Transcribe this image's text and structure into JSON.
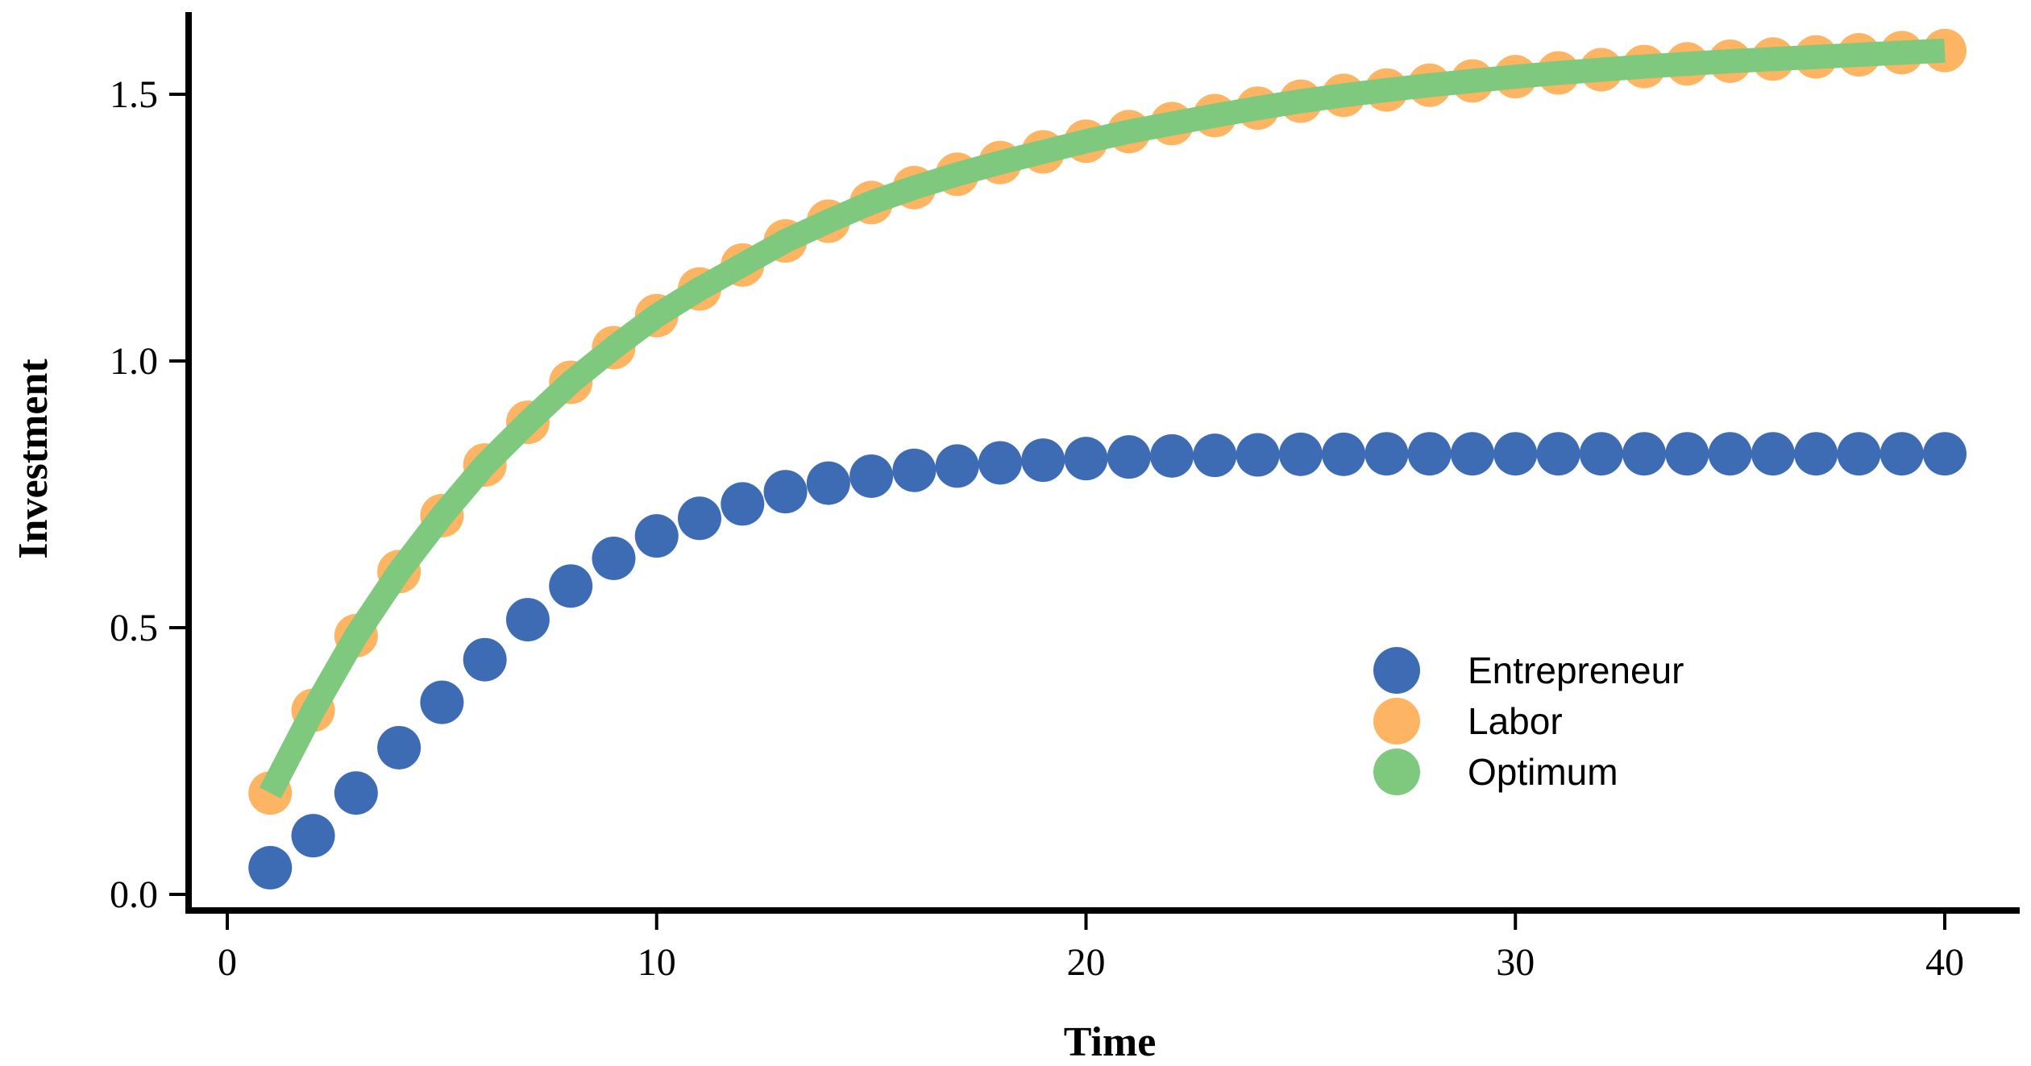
{
  "chart_data": {
    "type": "scatter",
    "title": "",
    "xlabel": "Time",
    "ylabel": "Investment",
    "xlim": [
      -1,
      42
    ],
    "ylim": [
      -0.05,
      1.65
    ],
    "xticks": [
      0,
      10,
      20,
      30,
      40
    ],
    "xtick_labels": [
      "0",
      "10",
      "20",
      "30",
      "40"
    ],
    "yticks": [
      0.0,
      0.5,
      1.0,
      1.5
    ],
    "ytick_labels": [
      "0.0",
      "0.5",
      "1.0",
      "1.5"
    ],
    "grid": false,
    "legend_position": "bottom-right",
    "series": [
      {
        "name": "Entrepreneur",
        "kind": "points",
        "color": "#3e6cb4",
        "x": [
          1,
          2,
          3,
          4,
          5,
          6,
          7,
          8,
          9,
          10,
          11,
          12,
          13,
          14,
          15,
          16,
          17,
          18,
          19,
          20,
          21,
          22,
          23,
          24,
          25,
          26,
          27,
          28,
          29,
          30,
          31,
          32,
          33,
          34,
          35,
          36,
          37,
          38,
          39,
          40
        ],
        "values": [
          0.05,
          0.11,
          0.19,
          0.275,
          0.36,
          0.44,
          0.515,
          0.578,
          0.63,
          0.672,
          0.705,
          0.732,
          0.755,
          0.771,
          0.784,
          0.795,
          0.803,
          0.809,
          0.814,
          0.817,
          0.82,
          0.822,
          0.823,
          0.824,
          0.825,
          0.825,
          0.826,
          0.826,
          0.826,
          0.826,
          0.826,
          0.826,
          0.826,
          0.826,
          0.826,
          0.826,
          0.826,
          0.826,
          0.826,
          0.826
        ]
      },
      {
        "name": "Labor",
        "kind": "points",
        "color": "#fdb463",
        "x": [
          1,
          2,
          3,
          4,
          5,
          6,
          7,
          8,
          9,
          10,
          11,
          12,
          13,
          14,
          15,
          16,
          17,
          18,
          19,
          20,
          21,
          22,
          23,
          24,
          25,
          26,
          27,
          28,
          29,
          30,
          31,
          32,
          33,
          34,
          35,
          36,
          37,
          38,
          39,
          40
        ],
        "values": [
          0.19,
          0.345,
          0.485,
          0.605,
          0.71,
          0.805,
          0.885,
          0.96,
          1.025,
          1.085,
          1.135,
          1.18,
          1.225,
          1.262,
          1.297,
          1.325,
          1.35,
          1.372,
          1.392,
          1.412,
          1.43,
          1.445,
          1.46,
          1.474,
          1.487,
          1.498,
          1.508,
          1.517,
          1.525,
          1.533,
          1.54,
          1.546,
          1.552,
          1.557,
          1.562,
          1.566,
          1.57,
          1.574,
          1.578,
          1.582
        ]
      },
      {
        "name": "Optimum",
        "kind": "line",
        "color": "#7ec97e",
        "x": [
          1,
          2,
          3,
          4,
          5,
          6,
          7,
          8,
          9,
          10,
          11,
          12,
          13,
          14,
          15,
          16,
          17,
          18,
          19,
          20,
          21,
          22,
          23,
          24,
          25,
          26,
          27,
          28,
          29,
          30,
          31,
          32,
          33,
          34,
          35,
          36,
          37,
          38,
          39,
          40
        ],
        "values": [
          0.19,
          0.345,
          0.485,
          0.605,
          0.71,
          0.805,
          0.885,
          0.96,
          1.025,
          1.085,
          1.135,
          1.18,
          1.225,
          1.262,
          1.297,
          1.325,
          1.35,
          1.372,
          1.392,
          1.412,
          1.43,
          1.445,
          1.46,
          1.474,
          1.487,
          1.498,
          1.508,
          1.517,
          1.525,
          1.533,
          1.54,
          1.546,
          1.552,
          1.557,
          1.562,
          1.566,
          1.57,
          1.574,
          1.578,
          1.582
        ]
      }
    ]
  }
}
